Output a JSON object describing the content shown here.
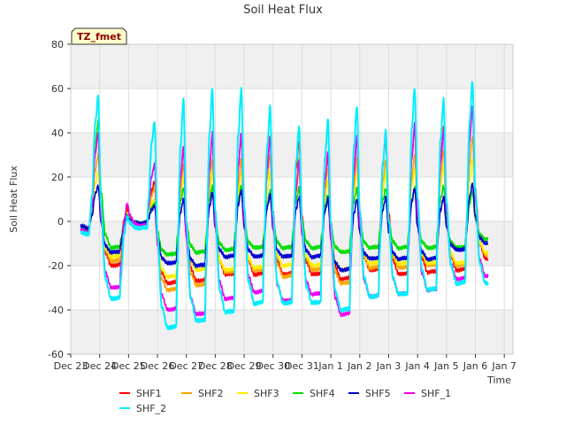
{
  "chart_data": {
    "type": "line",
    "title": "Soil Heat Flux",
    "xlabel": "Time",
    "ylabel": "Soil Heat Flux",
    "badge": "TZ_fmet",
    "xlim": [
      0,
      15.3
    ],
    "ylim": [
      -60,
      80
    ],
    "yticks": [
      -60,
      -40,
      -20,
      0,
      20,
      40,
      60,
      80
    ],
    "xticks": [
      {
        "value": 0,
        "label": "Dec 23"
      },
      {
        "value": 1,
        "label": "Dec 24"
      },
      {
        "value": 2,
        "label": "Dec 25"
      },
      {
        "value": 3,
        "label": "Dec 26"
      },
      {
        "value": 4,
        "label": "Dec 27"
      },
      {
        "value": 5,
        "label": "Dec 28"
      },
      {
        "value": 6,
        "label": "Dec 29"
      },
      {
        "value": 7,
        "label": "Dec 30"
      },
      {
        "value": 8,
        "label": "Dec 31"
      },
      {
        "value": 9,
        "label": "Jan 1"
      },
      {
        "value": 10,
        "label": "Jan 2"
      },
      {
        "value": 11,
        "label": "Jan 3"
      },
      {
        "value": 12,
        "label": "Jan 4"
      },
      {
        "value": 13,
        "label": "Jan 5"
      },
      {
        "value": 14,
        "label": "Jan 6"
      },
      {
        "value": 15,
        "label": "Jan 7"
      }
    ],
    "day_centers": [
      0.95,
      1.95,
      2.9,
      3.9,
      4.9,
      5.9,
      6.9,
      7.9,
      8.9,
      9.9,
      10.9,
      11.9,
      12.9,
      13.9
    ],
    "series": [
      {
        "name": "SHF1",
        "color": "#ff0000",
        "start": -3,
        "peaks": [
          40,
          6,
          18,
          33,
          38,
          38,
          38,
          36,
          30,
          37,
          38,
          42,
          42,
          52
        ],
        "troughs": [
          -20,
          -2,
          -28,
          -27,
          -24,
          -24,
          -24,
          -24,
          -26,
          -22,
          -24,
          -23,
          -22,
          -17
        ]
      },
      {
        "name": "SHF2",
        "color": "#ffa500",
        "start": -3,
        "peaks": [
          30,
          4,
          15,
          26,
          28,
          28,
          30,
          28,
          24,
          28,
          28,
          30,
          32,
          38
        ],
        "troughs": [
          -18,
          -2,
          -31,
          -29,
          -23,
          -22,
          -25,
          -22,
          -28,
          -21,
          -21,
          -20,
          -20,
          -15
        ]
      },
      {
        "name": "SHF3",
        "color": "#ffee00",
        "start": -3,
        "peaks": [
          22,
          3,
          10,
          20,
          22,
          22,
          22,
          22,
          18,
          22,
          22,
          24,
          25,
          28
        ],
        "troughs": [
          -16,
          -1,
          -25,
          -22,
          -22,
          -21,
          -20,
          -20,
          -22,
          -19,
          -19,
          -19,
          -19,
          -14
        ]
      },
      {
        "name": "SHF4",
        "color": "#00dd00",
        "start": -3,
        "peaks": [
          45,
          3,
          8,
          15,
          16,
          16,
          14,
          15,
          12,
          15,
          15,
          15,
          16,
          13
        ],
        "troughs": [
          -12,
          -1,
          -15,
          -14,
          -13,
          -12,
          -12,
          -12,
          -14,
          -12,
          -12,
          -12,
          -12,
          -8
        ]
      },
      {
        "name": "SHF5",
        "color": "#0000cc",
        "start": -2,
        "peaks": [
          16,
          2,
          7,
          10,
          13,
          14,
          12,
          11,
          10,
          10,
          11,
          15,
          11,
          17
        ],
        "troughs": [
          -14,
          -1,
          -19,
          -20,
          -16,
          -16,
          -16,
          -16,
          -22,
          -17,
          -17,
          -17,
          -13,
          -10
        ]
      },
      {
        "name": "SHF_1",
        "color": "#ee00ee",
        "start": -4,
        "peaks": [
          40,
          8,
          26,
          34,
          40,
          40,
          38,
          27,
          32,
          38,
          41,
          44,
          41,
          52
        ],
        "troughs": [
          -30,
          -2,
          -40,
          -42,
          -35,
          -32,
          -36,
          -33,
          -42,
          -34,
          -33,
          -31,
          -26,
          -25
        ]
      },
      {
        "name": "SHF_2",
        "color": "#00eeff",
        "start": -5,
        "peaks": [
          57,
          2,
          45,
          55,
          60,
          60,
          52,
          43,
          46,
          52,
          41,
          60,
          55,
          63
        ],
        "troughs": [
          -35,
          -3,
          -48,
          -45,
          -41,
          -37,
          -37,
          -37,
          -40,
          -34,
          -33,
          -31,
          -28,
          -28
        ]
      }
    ]
  }
}
